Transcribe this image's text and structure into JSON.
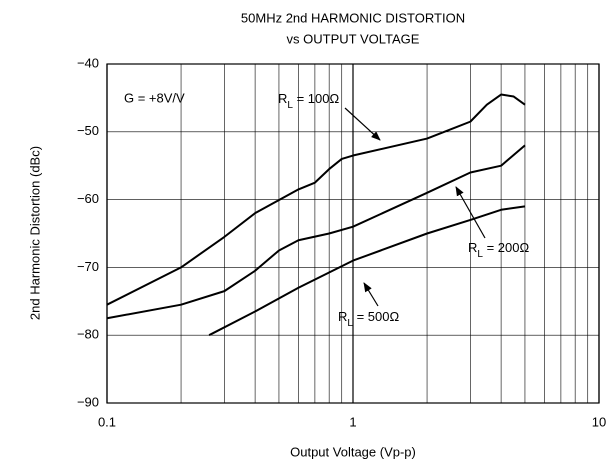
{
  "chart_data": {
    "type": "line",
    "title": [
      "50MHz 2nd HARMONIC DISTORTION",
      "vs OUTPUT VOLTAGE"
    ],
    "x_label": "Output Voltage (Vp-p)",
    "y_label": "2nd Harmonic Distortion (dBc)",
    "xscale": "log",
    "xlim": [
      0.1,
      10
    ],
    "xticks": [
      0.1,
      1,
      10
    ],
    "ylim": [
      -90,
      -40
    ],
    "yticks": [
      {
        "value": -40,
        "label": "−40"
      },
      {
        "value": -50,
        "label": "−50"
      },
      {
        "value": -60,
        "label": "−60"
      },
      {
        "value": -70,
        "label": "−70"
      },
      {
        "value": -80,
        "label": "−80"
      },
      {
        "value": -90,
        "label": "−90"
      }
    ],
    "grid": true,
    "series": [
      {
        "color": "#000000",
        "x": [
          0.1,
          0.2,
          0.3,
          0.4,
          0.6,
          0.7,
          0.8,
          0.9,
          1,
          2,
          3,
          3.5,
          4,
          4.5,
          5
        ],
        "values": [
          -75.5,
          -70,
          -65.5,
          -62,
          -58.5,
          -57.5,
          -55.5,
          -54,
          -53.5,
          -51,
          -48.5,
          -46,
          -44.5,
          -44.8,
          -46
        ]
      },
      {
        "color": "#000000",
        "x": [
          0.1,
          0.2,
          0.3,
          0.4,
          0.5,
          0.6,
          0.8,
          1,
          2,
          3,
          4,
          5
        ],
        "values": [
          -77.5,
          -75.5,
          -73.5,
          -70.5,
          -67.5,
          -66,
          -65,
          -64,
          -59,
          -56,
          -55,
          -52
        ]
      },
      {
        "color": "#000000",
        "x": [
          0.26,
          0.4,
          0.6,
          1,
          2,
          3,
          4,
          5
        ],
        "values": [
          -80,
          -76.5,
          -73,
          -69,
          -65,
          -63,
          -61.5,
          -61
        ]
      }
    ],
    "annotations": [
      {
        "text": "G = +8V/V"
      },
      {
        "main": "R",
        "sub": "L",
        "rest": " = 100Ω"
      },
      {
        "main": "R",
        "sub": "L",
        "rest": " = 200Ω"
      },
      {
        "main": "R",
        "sub": "L",
        "rest": " = 500Ω"
      }
    ]
  }
}
